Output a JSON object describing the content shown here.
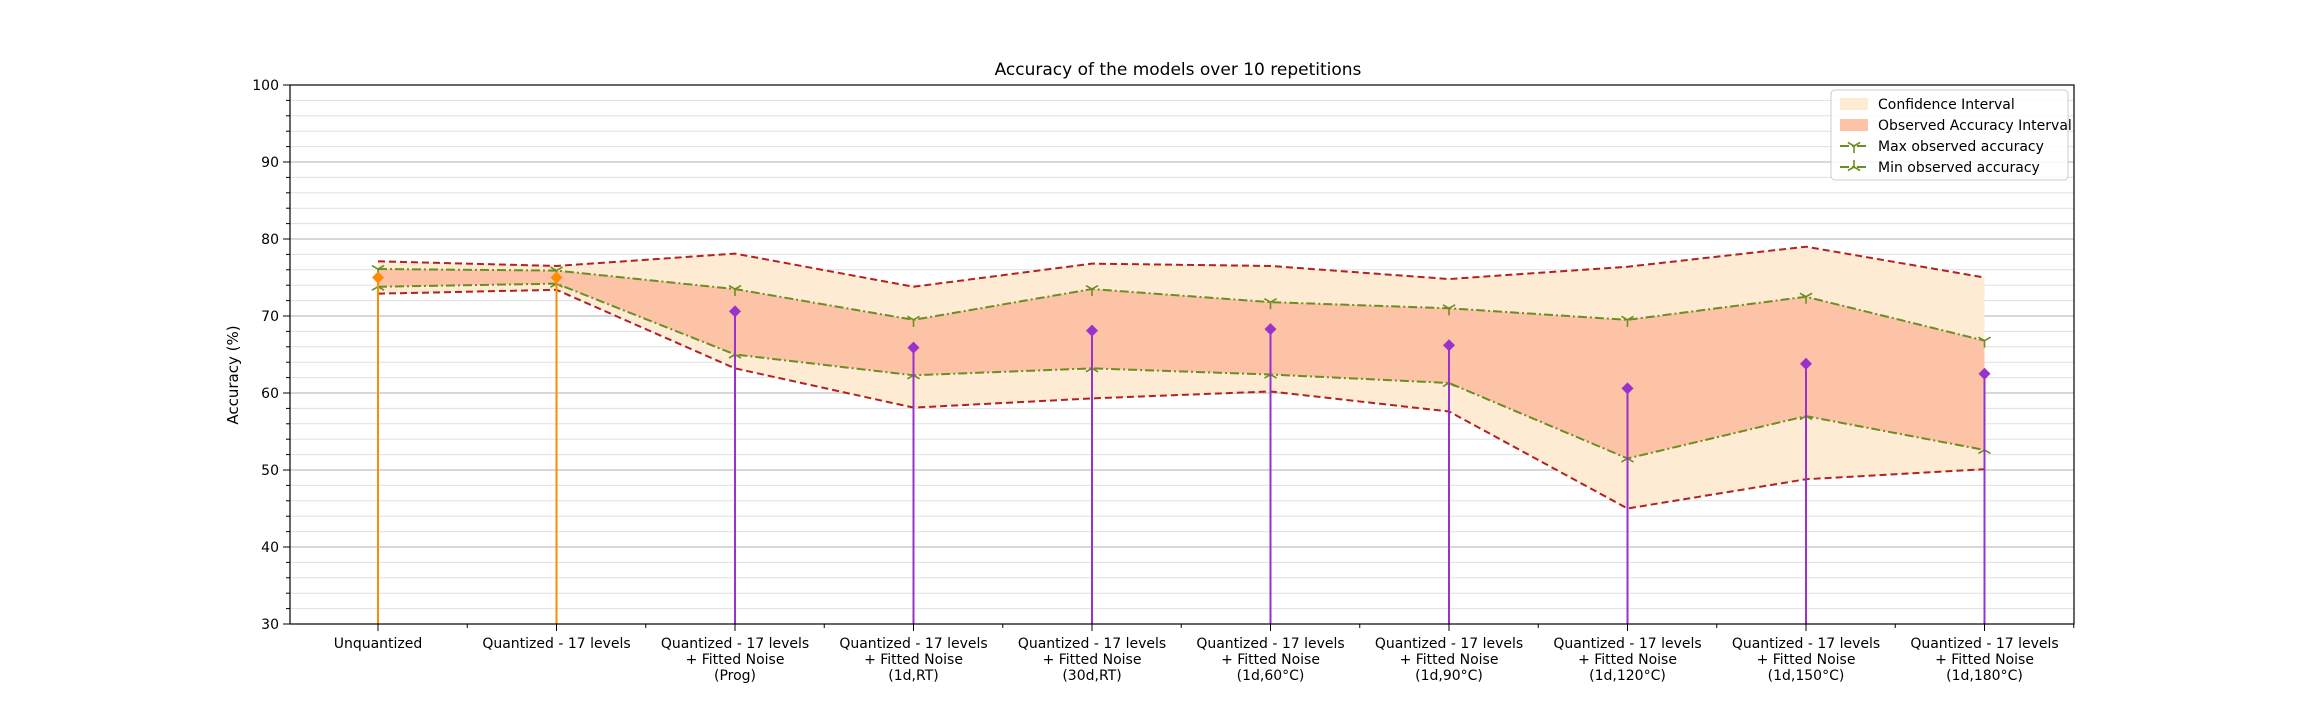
{
  "chart_data": {
    "type": "line",
    "title": "Accuracy of the models over 10 repetitions",
    "xlabel": "",
    "ylabel": "Accuracy (%)",
    "ylim": [
      30,
      100
    ],
    "yticks": [
      30,
      40,
      50,
      60,
      70,
      80,
      90,
      100
    ],
    "grid": true,
    "legend_position": "top-right",
    "categories": [
      [
        "Unquantized"
      ],
      [
        "Quantized - 17 levels"
      ],
      [
        "Quantized - 17 levels",
        "+ Fitted Noise",
        "(Prog)"
      ],
      [
        "Quantized - 17 levels",
        "+ Fitted Noise",
        "(1d,RT)"
      ],
      [
        "Quantized - 17 levels",
        "+ Fitted Noise",
        "(30d,RT)"
      ],
      [
        "Quantized - 17 levels",
        "+ Fitted Noise",
        "(1d,60°C)"
      ],
      [
        "Quantized - 17 levels",
        "+ Fitted Noise",
        "(1d,90°C)"
      ],
      [
        "Quantized - 17 levels",
        "+ Fitted Noise",
        "(1d,120°C)"
      ],
      [
        "Quantized - 17 levels",
        "+ Fitted Noise",
        "(1d,150°C)"
      ],
      [
        "Quantized - 17 levels",
        "+ Fitted Noise",
        "(1d,180°C)"
      ]
    ],
    "legend": [
      {
        "label": "Confidence Interval",
        "kind": "fill",
        "color": "#fdebd3"
      },
      {
        "label": "Observed Accuracy Interval",
        "kind": "fill",
        "color": "#fcc3a7"
      },
      {
        "label": "Max observed accuracy",
        "kind": "line",
        "marker": "tri_down",
        "color": "#6b8e23"
      },
      {
        "label": "Min observed accuracy",
        "kind": "line",
        "marker": "tri_up",
        "color": "#6b8e23"
      }
    ],
    "series": [
      {
        "name": "Max observed accuracy",
        "values": [
          76.1,
          75.9,
          73.5,
          69.5,
          73.5,
          71.8,
          71.0,
          69.5,
          72.5,
          66.8
        ]
      },
      {
        "name": "Min observed accuracy",
        "values": [
          73.8,
          74.2,
          65.0,
          62.3,
          63.2,
          62.4,
          61.3,
          51.5,
          57.0,
          52.6
        ]
      },
      {
        "values": [
          77.1,
          76.5,
          78.1,
          73.8,
          76.8,
          76.5,
          74.8,
          76.4,
          79.0,
          75.0
        ]
      },
      {
        "values": [
          72.9,
          73.4,
          63.2,
          58.1,
          59.3,
          60.2,
          57.6,
          45.0,
          48.8,
          50.1
        ]
      },
      {
        "values": [
          75.0,
          75.0,
          70.6,
          65.9,
          68.1,
          68.3,
          66.2,
          60.6,
          63.8,
          62.5
        ]
      }
    ],
    "colors": {
      "ci_fill": "#fdebd3",
      "obs_fill": "#fcc3a7",
      "minmax_line": "#6b8e23",
      "ci_line": "#b22222",
      "stem_orange": "#ff8c00",
      "stem_purple": "#9932cc",
      "grid_major": "#b0b0b0",
      "grid_minor": "#e0e0e0"
    },
    "stem_color_groups": [
      "orange",
      "orange",
      "purple",
      "purple",
      "purple",
      "purple",
      "purple",
      "purple",
      "purple",
      "purple"
    ]
  }
}
